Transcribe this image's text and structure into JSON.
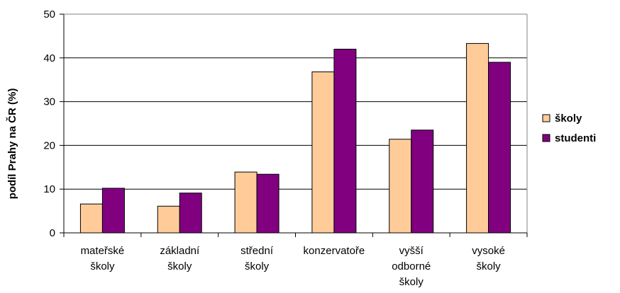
{
  "chart_data": {
    "type": "bar",
    "title": "",
    "xlabel": "",
    "ylabel": "podíl Prahy na ČR (%)",
    "ylim": [
      0,
      50
    ],
    "yticks": [
      0,
      10,
      20,
      30,
      40,
      50
    ],
    "grid": true,
    "legend_position": "right",
    "categories": [
      [
        "mateřské",
        "školy"
      ],
      [
        "základní",
        "školy"
      ],
      [
        "střední",
        "školy"
      ],
      [
        "konzervatoře"
      ],
      [
        "vyšší",
        "odborné",
        "školy"
      ],
      [
        "vysoké",
        "školy"
      ]
    ],
    "series": [
      {
        "name": "školy",
        "color": "#ffcc99",
        "values": [
          6.6,
          6.1,
          13.9,
          36.8,
          21.4,
          43.3
        ]
      },
      {
        "name": "studenti",
        "color": "#800080",
        "values": [
          10.2,
          9.1,
          13.4,
          42.0,
          23.5,
          39.0
        ]
      }
    ]
  }
}
